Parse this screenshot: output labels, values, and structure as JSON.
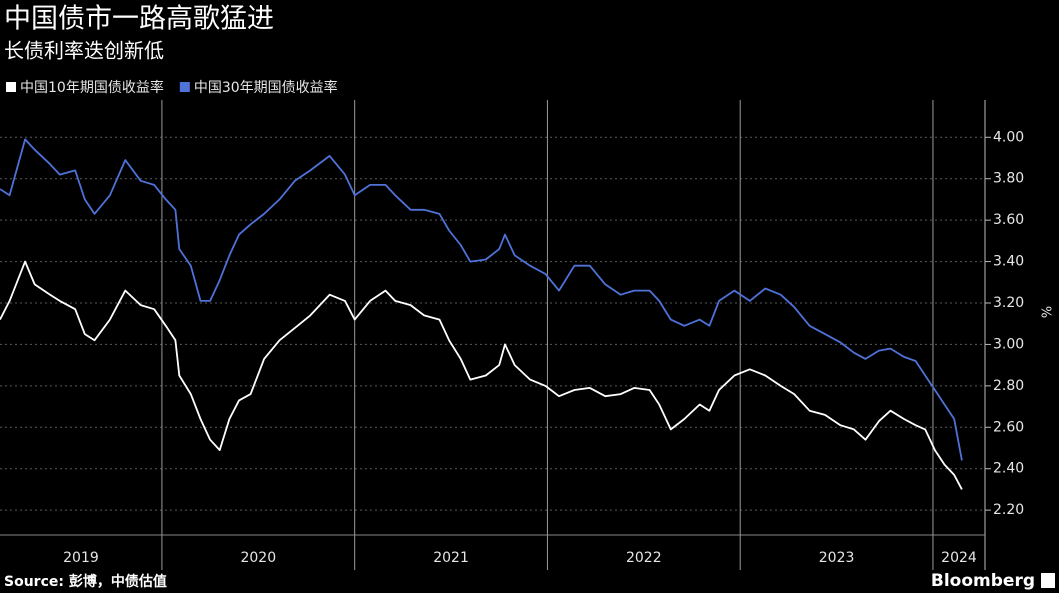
{
  "chart_data": {
    "type": "line",
    "title": "中国债市一路高歌猛进",
    "subtitle": "长债利率迭创新低",
    "source": "Source: 彭博，中债估值",
    "brand": "Bloomberg",
    "y_unit": "%",
    "legend": "top-left",
    "grid": true,
    "x": [
      2019.16,
      2019.21,
      2019.29,
      2019.34,
      2019.42,
      2019.47,
      2019.55,
      2019.6,
      2019.65,
      2019.73,
      2019.81,
      2019.89,
      2019.96,
      2020.02,
      2020.07,
      2020.09,
      2020.15,
      2020.2,
      2020.25,
      2020.3,
      2020.35,
      2020.4,
      2020.46,
      2020.53,
      2020.61,
      2020.69,
      2020.77,
      2020.87,
      2020.95,
      2021.0,
      2021.08,
      2021.16,
      2021.21,
      2021.29,
      2021.36,
      2021.44,
      2021.49,
      2021.55,
      2021.6,
      2021.68,
      2021.75,
      2021.78,
      2021.83,
      2021.91,
      2021.99,
      2022.06,
      2022.14,
      2022.22,
      2022.3,
      2022.38,
      2022.45,
      2022.53,
      2022.58,
      2022.64,
      2022.71,
      2022.79,
      2022.84,
      2022.89,
      2022.97,
      2023.05,
      2023.13,
      2023.21,
      2023.28,
      2023.36,
      2023.44,
      2023.52,
      2023.59,
      2023.65,
      2023.72,
      2023.78,
      2023.85,
      2023.91,
      2023.96,
      2024.01,
      2024.06,
      2024.11,
      2024.15
    ],
    "series": [
      {
        "name": "中国10年期国债收益率",
        "color": "#ffffff",
        "values": [
          3.12,
          3.21,
          3.4,
          3.29,
          3.24,
          3.21,
          3.17,
          3.05,
          3.02,
          3.12,
          3.26,
          3.19,
          3.17,
          3.09,
          3.02,
          2.85,
          2.76,
          2.64,
          2.54,
          2.49,
          2.64,
          2.73,
          2.76,
          2.93,
          3.02,
          3.08,
          3.14,
          3.24,
          3.21,
          3.12,
          3.21,
          3.26,
          3.21,
          3.19,
          3.14,
          3.12,
          3.02,
          2.93,
          2.83,
          2.85,
          2.9,
          3.0,
          2.9,
          2.83,
          2.8,
          2.75,
          2.78,
          2.79,
          2.75,
          2.76,
          2.79,
          2.78,
          2.71,
          2.59,
          2.64,
          2.71,
          2.68,
          2.78,
          2.85,
          2.88,
          2.85,
          2.8,
          2.76,
          2.68,
          2.66,
          2.61,
          2.59,
          2.54,
          2.63,
          2.68,
          2.64,
          2.61,
          2.59,
          2.49,
          2.42,
          2.37,
          2.3
        ]
      },
      {
        "name": "中国30年期国债收益率",
        "color": "#4f72d9",
        "values": [
          3.75,
          3.72,
          3.99,
          3.94,
          3.87,
          3.82,
          3.84,
          3.7,
          3.63,
          3.72,
          3.89,
          3.79,
          3.77,
          3.7,
          3.65,
          3.46,
          3.38,
          3.21,
          3.21,
          3.31,
          3.43,
          3.53,
          3.58,
          3.63,
          3.7,
          3.79,
          3.84,
          3.91,
          3.82,
          3.72,
          3.77,
          3.77,
          3.72,
          3.65,
          3.65,
          3.63,
          3.55,
          3.48,
          3.4,
          3.41,
          3.46,
          3.53,
          3.43,
          3.38,
          3.34,
          3.26,
          3.38,
          3.38,
          3.29,
          3.24,
          3.26,
          3.26,
          3.21,
          3.12,
          3.09,
          3.12,
          3.09,
          3.21,
          3.26,
          3.21,
          3.27,
          3.24,
          3.18,
          3.09,
          3.05,
          3.01,
          2.96,
          2.93,
          2.97,
          2.98,
          2.94,
          2.92,
          2.85,
          2.78,
          2.71,
          2.64,
          2.44
        ]
      }
    ],
    "xlim": [
      2019.16,
      2024.27
    ],
    "xticks": [
      2019,
      2020,
      2021,
      2022,
      2023,
      2024
    ],
    "ylim": [
      2.08,
      4.18
    ],
    "yticks": [
      {
        "value": 2.2,
        "label": "2.20"
      },
      {
        "value": 2.4,
        "label": "2.40"
      },
      {
        "value": 2.6,
        "label": "2.60"
      },
      {
        "value": 2.8,
        "label": "2.80"
      },
      {
        "value": 3.0,
        "label": "3.00"
      },
      {
        "value": 3.2,
        "label": "3.20"
      },
      {
        "value": 3.4,
        "label": "3.40"
      },
      {
        "value": 3.6,
        "label": "3.60"
      },
      {
        "value": 3.8,
        "label": "3.80"
      },
      {
        "value": 4.0,
        "label": "4.00"
      }
    ]
  }
}
